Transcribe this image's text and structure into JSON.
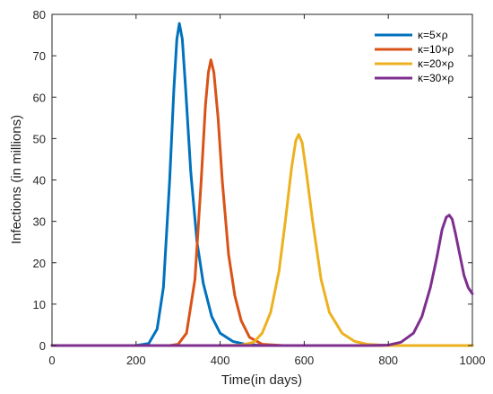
{
  "chart_data": {
    "type": "line",
    "xlabel": "Time(in days)",
    "ylabel": "Infections (in millions)",
    "xlim": [
      0,
      1000
    ],
    "ylim": [
      0,
      80
    ],
    "xticks": [
      0,
      200,
      400,
      600,
      800,
      1000
    ],
    "yticks": [
      0,
      10,
      20,
      30,
      40,
      50,
      60,
      70,
      80
    ],
    "grid": false,
    "legend_position": "top-right",
    "series": [
      {
        "name": "κ=5×ρ",
        "color": "#0072BD",
        "x": [
          0,
          200,
          230,
          250,
          265,
          280,
          290,
          297,
          303,
          310,
          318,
          330,
          345,
          360,
          380,
          400,
          430,
          460,
          500,
          550,
          1000
        ],
        "y": [
          0,
          0,
          0.5,
          4,
          14,
          40,
          62,
          74,
          77.8,
          74,
          62,
          42,
          25,
          15,
          7,
          3,
          1,
          0.3,
          0,
          0,
          0
        ]
      },
      {
        "name": "κ=10×ρ",
        "color": "#D95319",
        "x": [
          0,
          280,
          300,
          320,
          340,
          355,
          365,
          372,
          378,
          385,
          395,
          405,
          420,
          435,
          450,
          470,
          500,
          550,
          1000
        ],
        "y": [
          0,
          0,
          0.3,
          3,
          16,
          40,
          58,
          66,
          69,
          66,
          55,
          40,
          22,
          12,
          6,
          2,
          0.3,
          0,
          0
        ]
      },
      {
        "name": "κ=20×ρ",
        "color": "#EDB120",
        "x": [
          0,
          400,
          450,
          480,
          500,
          520,
          540,
          555,
          570,
          580,
          587,
          595,
          605,
          620,
          640,
          660,
          690,
          720,
          750,
          800,
          1000
        ],
        "y": [
          0,
          0,
          0.1,
          0.8,
          3,
          8,
          18,
          30,
          43,
          49.5,
          51,
          49,
          42,
          30,
          16,
          8,
          3,
          1,
          0.3,
          0,
          0
        ]
      },
      {
        "name": "κ=30×ρ",
        "color": "#7E2F8E",
        "x": [
          0,
          750,
          800,
          830,
          860,
          880,
          900,
          915,
          928,
          938,
          945,
          952,
          960,
          970,
          980,
          990,
          1000
        ],
        "y": [
          0,
          0,
          0.1,
          0.8,
          3,
          7,
          14,
          21,
          28,
          31,
          31.5,
          30.5,
          27,
          22,
          17,
          14,
          12.5
        ]
      }
    ]
  }
}
